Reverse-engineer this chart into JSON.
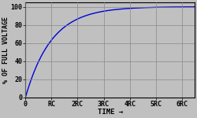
{
  "title": "",
  "xlabel": "TIME →",
  "ylabel": "% OF FULL VOLTAGE",
  "background_color": "#c0c0c0",
  "line_color": "#0000dd",
  "line_width": 1.0,
  "x_ticks": [
    0,
    1,
    2,
    3,
    4,
    5,
    6
  ],
  "x_tick_labels": [
    "0",
    "RC",
    "2RC",
    "3RC",
    "4RC",
    "5RC",
    "6RC"
  ],
  "y_ticks": [
    0,
    20,
    40,
    60,
    80,
    100
  ],
  "ylim": [
    0,
    105
  ],
  "xlim": [
    0,
    6.5
  ],
  "grid_color": "#888888",
  "font_family": "monospace",
  "tick_fontsize": 6,
  "label_fontsize": 6.5,
  "ylabel_fontsize": 6
}
